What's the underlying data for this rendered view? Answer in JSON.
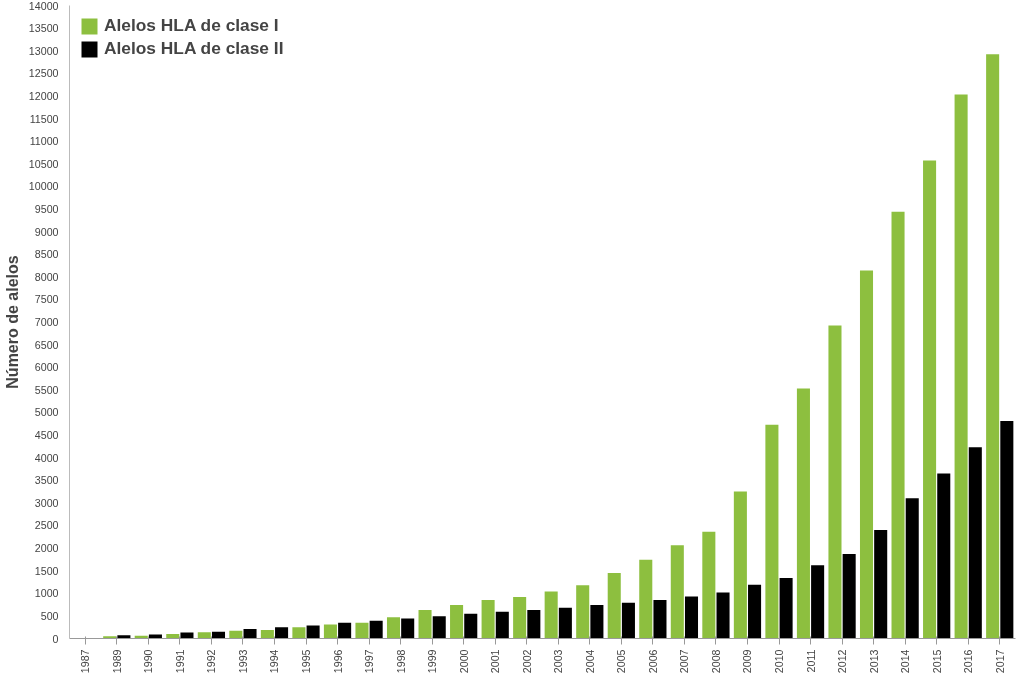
{
  "chart_data": {
    "type": "bar",
    "ylabel": "Número de alelos",
    "categories": [
      "1987",
      "1989",
      "1990",
      "1991",
      "1992",
      "1993",
      "1994",
      "1995",
      "1996",
      "1997",
      "1998",
      "1999",
      "2000",
      "2001",
      "2002",
      "2003",
      "2004",
      "2005",
      "2006",
      "2007",
      "2008",
      "2009",
      "2010",
      "2011",
      "2012",
      "2013",
      "2014",
      "2015",
      "2016",
      "2017"
    ],
    "series": [
      {
        "name": "Alelos HLA de clase I",
        "color": "#8dbf3f",
        "values": [
          10,
          50,
          60,
          100,
          140,
          170,
          190,
          250,
          310,
          350,
          470,
          630,
          740,
          850,
          920,
          1040,
          1180,
          1450,
          1740,
          2060,
          2360,
          3250,
          4730,
          5530,
          6920,
          8140,
          9440,
          10570,
          12030,
          12920
        ]
      },
      {
        "name": "Alelos HLA de clase II",
        "color": "#000000",
        "values": [
          null,
          70,
          90,
          130,
          150,
          210,
          250,
          290,
          350,
          390,
          440,
          490,
          550,
          590,
          630,
          680,
          740,
          790,
          850,
          930,
          1020,
          1190,
          1340,
          1620,
          1870,
          2400,
          3100,
          3650,
          4230,
          4810
        ]
      }
    ],
    "ylim": [
      0,
      14000
    ],
    "yticks": [
      0,
      500,
      1000,
      1500,
      2000,
      2500,
      3000,
      3500,
      4000,
      4500,
      5000,
      5500,
      6000,
      6500,
      7000,
      7500,
      8000,
      8500,
      9000,
      9500,
      10000,
      10500,
      11000,
      11500,
      12000,
      12500,
      13000,
      13500,
      14000
    ],
    "grid": false,
    "legend": "top left"
  }
}
